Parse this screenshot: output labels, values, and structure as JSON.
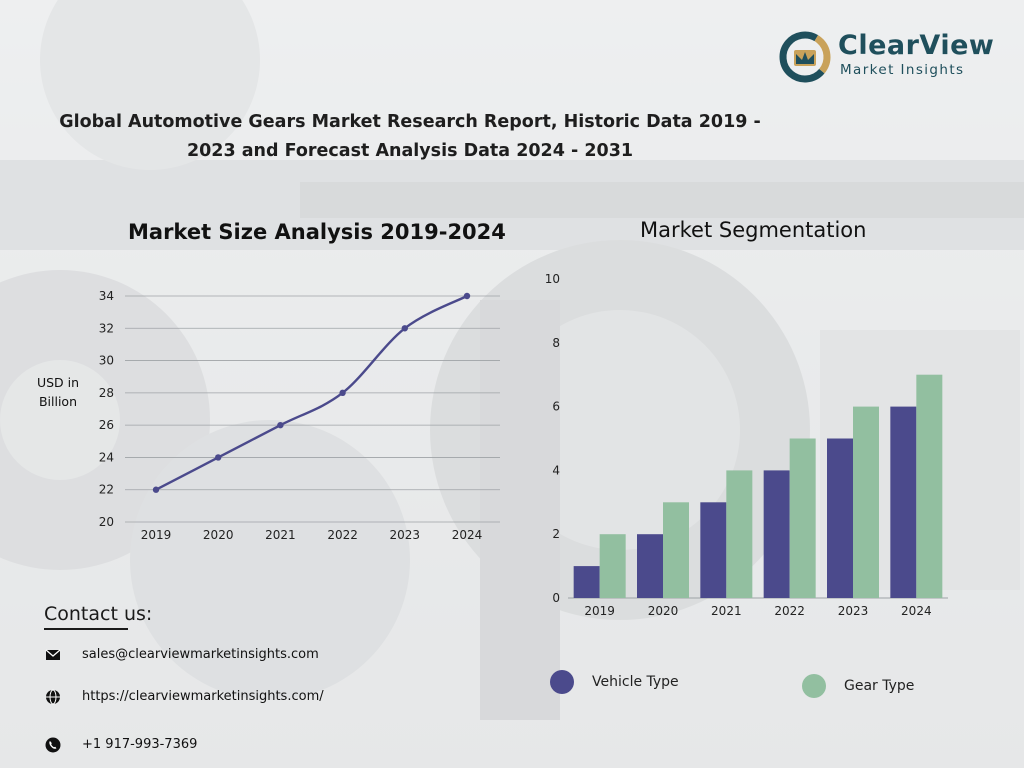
{
  "header": {
    "logo": {
      "name": "ClearView",
      "subtitle": "Market Insights"
    },
    "title_line1": "Global Automotive Gears Market Research Report, Historic Data 2019 -",
    "title_line2": "2023 and Forecast Analysis Data 2024 - 2031"
  },
  "colors": {
    "navy": "#4b4a8c",
    "green": "#92bfa0",
    "line": "#4b4a8c"
  },
  "chart_data": [
    {
      "type": "line",
      "title": "Market Size Analysis 2019-2024",
      "ylabel": "USD in Billion",
      "x": [
        "2019",
        "2020",
        "2021",
        "2022",
        "2023",
        "2024"
      ],
      "series": [
        {
          "values": [
            22,
            24,
            26,
            28,
            32,
            34
          ]
        }
      ],
      "ylim": [
        20,
        34
      ],
      "yticks": [
        20,
        22,
        24,
        26,
        28,
        30,
        32,
        34
      ],
      "grid": true
    },
    {
      "type": "bar",
      "title": "Market Segmentation",
      "categories": [
        "2019",
        "2020",
        "2021",
        "2022",
        "2023",
        "2024"
      ],
      "series": [
        {
          "name": "Vehicle Type",
          "values": [
            1,
            2,
            3,
            4,
            5,
            6
          ],
          "color": "#4b4a8c"
        },
        {
          "name": "Gear Type",
          "values": [
            2,
            3,
            4,
            5,
            6,
            7
          ],
          "color": "#92bfa0"
        }
      ],
      "ylim": [
        0,
        10
      ],
      "yticks": [
        0,
        2,
        4,
        6,
        8,
        10
      ],
      "grid": false,
      "legend_position": "bottom"
    }
  ],
  "contact": {
    "title": "Contact us:",
    "items": [
      {
        "icon": "mail-icon",
        "text": "sales@clearviewmarketinsights.com"
      },
      {
        "icon": "globe-icon",
        "text": "https://clearviewmarketinsights.com/"
      },
      {
        "icon": "phone-icon",
        "text": "+1 917-993-7369"
      }
    ]
  }
}
